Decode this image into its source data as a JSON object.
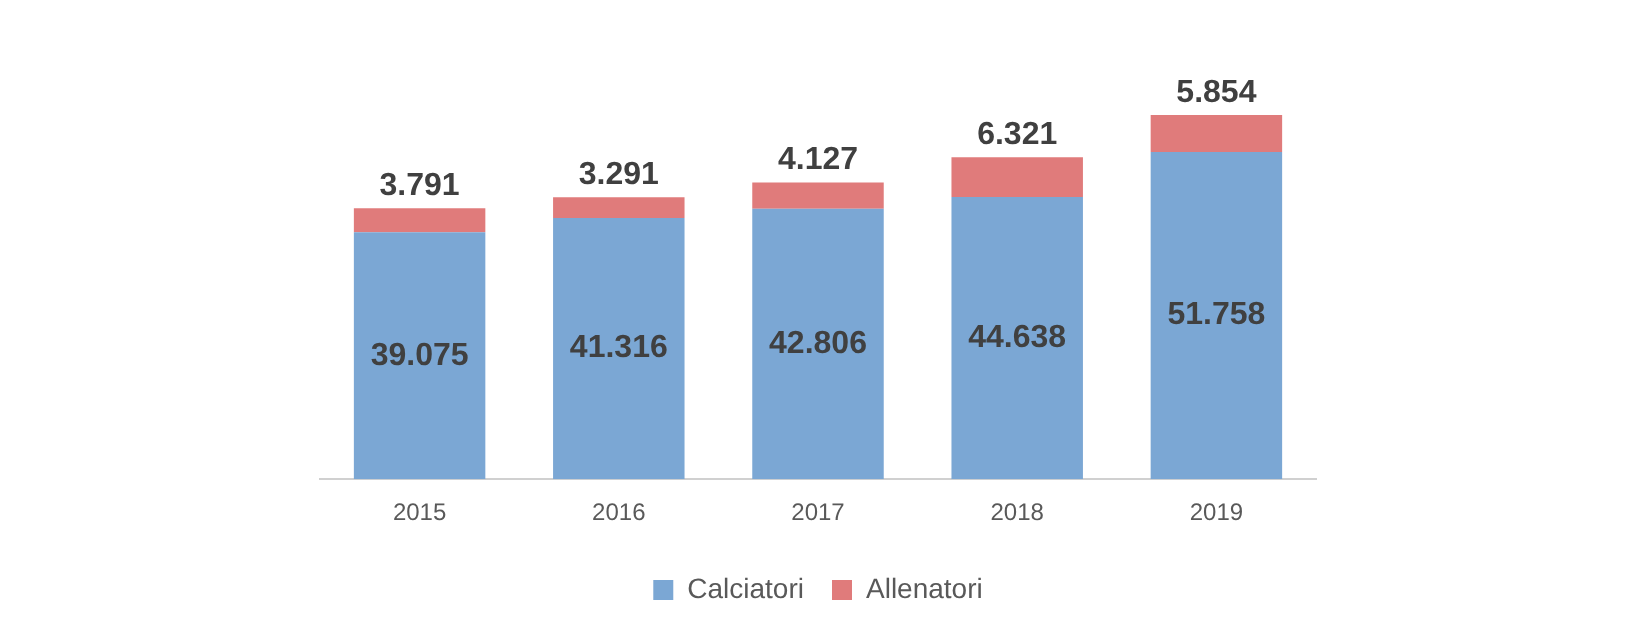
{
  "chart_data": {
    "type": "bar",
    "stacked": true,
    "categories": [
      "2015",
      "2016",
      "2017",
      "2018",
      "2019"
    ],
    "series": [
      {
        "name": "Calciatori",
        "color": "#7ba7d4",
        "values": [
          39075,
          41316,
          42806,
          44638,
          51758
        ],
        "value_labels": [
          "39.075",
          "41.316",
          "42.806",
          "44.638",
          "51.758"
        ]
      },
      {
        "name": "Allenatori",
        "color": "#e07b7b",
        "values": [
          3791,
          3291,
          4127,
          6321,
          5854
        ],
        "value_labels": [
          "3.791",
          "3.291",
          "4.127",
          "6.321",
          "5.854"
        ]
      }
    ],
    "legend": "bottom",
    "grid": false,
    "tick_labels": "x"
  }
}
